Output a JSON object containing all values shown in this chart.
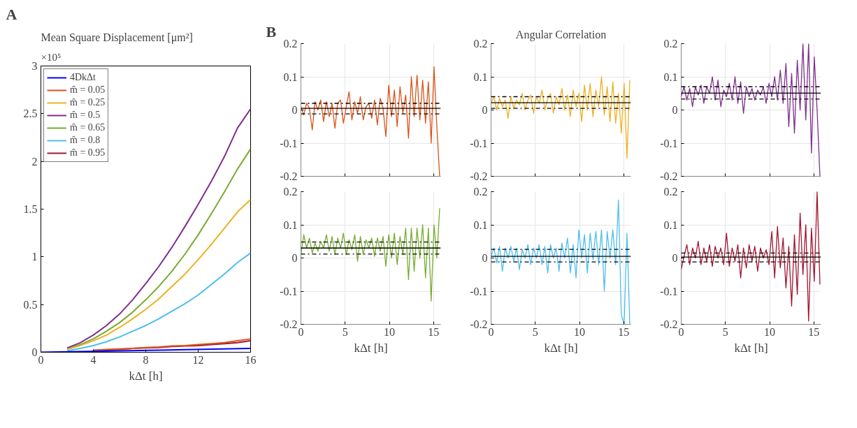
{
  "chart_data": [
    {
      "type": "line",
      "title": "Mean Square Displacement [μm²]",
      "xlabel": "kΔt [h]",
      "annotations": [
        "A",
        "×10⁵"
      ],
      "xlim": [
        0,
        16
      ],
      "xticks": [
        0,
        4,
        8,
        12,
        16
      ],
      "ylim": [
        0,
        3
      ],
      "yticks": [
        0,
        0.5,
        1,
        1.5,
        2,
        2.5,
        3
      ],
      "grid": false,
      "legend": "top left",
      "series": [
        {
          "name": "4DkΔt",
          "color": "#0000ff",
          "x": [
            0,
            16
          ],
          "values": [
            0,
            0.04
          ]
        },
        {
          "name": "m̂ = 0.05",
          "color": "#d95319",
          "x": [
            4,
            5,
            6,
            7,
            8,
            9,
            10,
            11,
            12,
            13,
            14,
            15,
            16
          ],
          "values": [
            0.02,
            0.03,
            0.035,
            0.04,
            0.05,
            0.055,
            0.065,
            0.07,
            0.08,
            0.09,
            0.1,
            0.12,
            0.14
          ]
        },
        {
          "name": "m̂ = 0.25",
          "color": "#edb120",
          "x": [
            2,
            3,
            4,
            5,
            6,
            7,
            8,
            9,
            10,
            11,
            12,
            13,
            14,
            15,
            16
          ],
          "values": [
            0.03,
            0.07,
            0.12,
            0.18,
            0.26,
            0.35,
            0.45,
            0.56,
            0.69,
            0.82,
            0.97,
            1.13,
            1.3,
            1.47,
            1.6
          ]
        },
        {
          "name": "m̂ = 0.5",
          "color": "#7e2f8e",
          "x": [
            2,
            3,
            4,
            5,
            6,
            7,
            8,
            9,
            10,
            11,
            12,
            13,
            14,
            15,
            16
          ],
          "values": [
            0.045,
            0.1,
            0.18,
            0.28,
            0.4,
            0.55,
            0.72,
            0.9,
            1.1,
            1.32,
            1.55,
            1.79,
            2.05,
            2.35,
            2.55
          ]
        },
        {
          "name": "m̂ = 0.65",
          "color": "#77ac30",
          "x": [
            2,
            3,
            4,
            5,
            6,
            7,
            8,
            9,
            10,
            11,
            12,
            13,
            14,
            15,
            16
          ],
          "values": [
            0.035,
            0.08,
            0.14,
            0.22,
            0.31,
            0.42,
            0.55,
            0.69,
            0.85,
            1.03,
            1.23,
            1.45,
            1.68,
            1.92,
            2.13
          ]
        },
        {
          "name": "m̂ = 0.8",
          "color": "#4dbeee",
          "x": [
            2,
            3,
            4,
            5,
            6,
            7,
            8,
            9,
            10,
            11,
            12,
            13,
            14,
            15,
            16
          ],
          "values": [
            0.015,
            0.04,
            0.07,
            0.11,
            0.16,
            0.22,
            0.28,
            0.35,
            0.43,
            0.51,
            0.6,
            0.71,
            0.82,
            0.94,
            1.04
          ]
        },
        {
          "name": "m̂ = 0.95",
          "color": "#a2142f",
          "x": [
            4,
            5,
            6,
            7,
            8,
            9,
            10,
            11,
            12,
            13,
            14,
            15,
            16
          ],
          "values": [
            0.02,
            0.025,
            0.03,
            0.04,
            0.045,
            0.05,
            0.06,
            0.065,
            0.07,
            0.08,
            0.09,
            0.1,
            0.12
          ]
        }
      ]
    },
    {
      "type": "line",
      "annotations": [
        "B"
      ],
      "tick_labels": "y",
      "xlim": [
        0,
        15.8
      ],
      "xticks": [
        0,
        5,
        10,
        15
      ],
      "ylim": [
        -0.2,
        0.2
      ],
      "yticks": [
        -0.2,
        -0.1,
        0,
        0.1,
        0.2
      ],
      "grid": true,
      "x": [
        0,
        0.32,
        0.64,
        0.96,
        1.28,
        1.6,
        1.92,
        2.24,
        2.56,
        2.88,
        3.2,
        3.52,
        3.84,
        4.16,
        4.48,
        4.8,
        5.12,
        5.44,
        5.76,
        6.08,
        6.4,
        6.72,
        7.04,
        7.36,
        7.68,
        8,
        8.32,
        8.64,
        8.96,
        9.28,
        9.6,
        9.92,
        10.24,
        10.56,
        10.88,
        11.2,
        11.52,
        11.84,
        12.16,
        12.48,
        12.8,
        13.12,
        13.44,
        13.76,
        14.08,
        14.4,
        14.72,
        15.04,
        15.36,
        15.68
      ],
      "series": [
        {
          "color": "#d95319",
          "values": [
            0.01,
            -0.015,
            0.02,
            0.005,
            -0.06,
            0.025,
            0.0,
            0.03,
            -0.035,
            0.025,
            -0.02,
            0.02,
            -0.055,
            0.02,
            0.03,
            -0.04,
            0.01,
            0.055,
            -0.03,
            0.025,
            -0.01,
            0.04,
            -0.03,
            0.01,
            0.02,
            -0.025,
            0.03,
            -0.045,
            0.035,
            0.005,
            -0.08,
            0.075,
            -0.02,
            0.06,
            -0.05,
            0.07,
            -0.01,
            0.045,
            -0.085,
            0.1,
            -0.02,
            0.105,
            -0.03,
            0.09,
            -0.04,
            0.085,
            -0.1,
            0.13,
            -0.05,
            -0.2
          ]
        }
      ],
      "ref_lines": [
        {
          "axis": "y",
          "value": 0.005,
          "line_style": "solid"
        },
        {
          "axis": "y",
          "value": 0.02,
          "line_style": "dashdot"
        },
        {
          "axis": "y",
          "value": -0.012,
          "line_style": "dashdot"
        }
      ]
    },
    {
      "type": "line",
      "title": "Angular Correlation",
      "tick_labels": "y",
      "xlim": [
        0,
        15.8
      ],
      "xticks": [
        0,
        5,
        10,
        15
      ],
      "ylim": [
        -0.2,
        0.2
      ],
      "yticks": [
        -0.2,
        -0.1,
        0,
        0.1,
        0.2
      ],
      "grid": true,
      "x": [
        0,
        0.32,
        0.64,
        0.96,
        1.28,
        1.6,
        1.92,
        2.24,
        2.56,
        2.88,
        3.2,
        3.52,
        3.84,
        4.16,
        4.48,
        4.8,
        5.12,
        5.44,
        5.76,
        6.08,
        6.4,
        6.72,
        7.04,
        7.36,
        7.68,
        8,
        8.32,
        8.64,
        8.96,
        9.28,
        9.6,
        9.92,
        10.24,
        10.56,
        10.88,
        11.2,
        11.52,
        11.84,
        12.16,
        12.48,
        12.8,
        13.12,
        13.44,
        13.76,
        14.08,
        14.4,
        14.72,
        15.04,
        15.36,
        15.68
      ],
      "series": [
        {
          "color": "#edb120",
          "values": [
            0.02,
            0.04,
            0.0,
            0.035,
            0.01,
            0.03,
            -0.025,
            0.04,
            0.005,
            0.03,
            0.015,
            0.05,
            0.0,
            0.03,
            0.045,
            -0.01,
            0.04,
            0.02,
            0.06,
            0.0,
            0.035,
            0.05,
            -0.01,
            0.04,
            0.015,
            0.065,
            0.0,
            0.045,
            -0.02,
            0.06,
            0.01,
            0.05,
            -0.035,
            0.075,
            0.0,
            0.08,
            -0.02,
            0.06,
            0.01,
            0.1,
            -0.015,
            0.07,
            -0.035,
            0.085,
            -0.04,
            0.05,
            -0.07,
            0.08,
            -0.145,
            0.09
          ]
        }
      ],
      "ref_lines": [
        {
          "axis": "y",
          "value": 0.022,
          "line_style": "solid"
        },
        {
          "axis": "y",
          "value": 0.04,
          "line_style": "dashdot"
        },
        {
          "axis": "y",
          "value": 0.005,
          "line_style": "dashdot"
        }
      ]
    },
    {
      "type": "line",
      "tick_labels": "y",
      "xlim": [
        0,
        15.8
      ],
      "xticks": [
        0,
        5,
        10,
        15
      ],
      "ylim": [
        -0.2,
        0.2
      ],
      "yticks": [
        -0.2,
        -0.1,
        0,
        0.1,
        0.2
      ],
      "grid": true,
      "x": [
        0,
        0.32,
        0.64,
        0.96,
        1.28,
        1.6,
        1.92,
        2.24,
        2.56,
        2.88,
        3.2,
        3.52,
        3.84,
        4.16,
        4.48,
        4.8,
        5.12,
        5.44,
        5.76,
        6.08,
        6.4,
        6.72,
        7.04,
        7.36,
        7.68,
        8,
        8.32,
        8.64,
        8.96,
        9.28,
        9.6,
        9.92,
        10.24,
        10.56,
        10.88,
        11.2,
        11.52,
        11.84,
        12.16,
        12.48,
        12.8,
        13.12,
        13.44,
        13.76,
        14.08,
        14.4,
        14.72,
        15.04,
        15.36,
        15.68
      ],
      "series": [
        {
          "color": "#7e2f8e",
          "values": [
            0.04,
            0.07,
            0.03,
            0.065,
            0.01,
            0.07,
            0.045,
            0.075,
            0.02,
            0.07,
            0.05,
            0.1,
            0.03,
            0.09,
            0.01,
            0.06,
            0.04,
            0.08,
            0.03,
            0.1,
            0.02,
            0.085,
            -0.01,
            0.07,
            0.04,
            0.065,
            0.03,
            0.06,
            0.045,
            0.07,
            0.02,
            0.08,
            0.04,
            0.1,
            0.03,
            0.12,
            0.02,
            0.14,
            -0.05,
            0.11,
            -0.07,
            0.15,
            0.0,
            0.2,
            -0.03,
            0.2,
            -0.13,
            0.16,
            0.0,
            -0.2
          ]
        }
      ],
      "ref_lines": [
        {
          "axis": "y",
          "value": 0.051,
          "line_style": "solid"
        },
        {
          "axis": "y",
          "value": 0.07,
          "line_style": "dashdot"
        },
        {
          "axis": "y",
          "value": 0.033,
          "line_style": "dashdot"
        }
      ]
    },
    {
      "type": "line",
      "xlabel": "kΔt [h]",
      "xlim": [
        0,
        15.8
      ],
      "xticks": [
        0,
        5,
        10,
        15
      ],
      "ylim": [
        -0.2,
        0.2
      ],
      "yticks": [
        -0.2,
        -0.1,
        0,
        0.1,
        0.2
      ],
      "grid": true,
      "x": [
        0,
        0.32,
        0.64,
        0.96,
        1.28,
        1.6,
        1.92,
        2.24,
        2.56,
        2.88,
        3.2,
        3.52,
        3.84,
        4.16,
        4.48,
        4.8,
        5.12,
        5.44,
        5.76,
        6.08,
        6.4,
        6.72,
        7.04,
        7.36,
        7.68,
        8,
        8.32,
        8.64,
        8.96,
        9.28,
        9.6,
        9.92,
        10.24,
        10.56,
        10.88,
        11.2,
        11.52,
        11.84,
        12.16,
        12.48,
        12.8,
        13.12,
        13.44,
        13.76,
        14.08,
        14.4,
        14.72,
        15.04,
        15.36,
        15.68
      ],
      "series": [
        {
          "color": "#77ac30",
          "values": [
            0.01,
            0.07,
            0.03,
            0.06,
            0.015,
            0.045,
            0.02,
            0.05,
            0.03,
            0.07,
            0.02,
            0.065,
            0.01,
            0.06,
            0.03,
            0.075,
            0.01,
            0.055,
            0.025,
            0.07,
            -0.01,
            0.065,
            0.01,
            0.055,
            0.03,
            0.06,
            0.005,
            0.06,
            0.02,
            0.065,
            -0.025,
            0.07,
            0.0,
            0.075,
            -0.02,
            0.065,
            0.01,
            0.09,
            -0.065,
            0.09,
            -0.04,
            0.09,
            0.0,
            0.1,
            -0.06,
            0.09,
            -0.13,
            0.1,
            0.0,
            0.15
          ]
        }
      ],
      "ref_lines": [
        {
          "axis": "y",
          "value": 0.03,
          "line_style": "solid"
        },
        {
          "axis": "y",
          "value": 0.048,
          "line_style": "dashdot"
        },
        {
          "axis": "y",
          "value": 0.012,
          "line_style": "dashdot"
        }
      ]
    },
    {
      "type": "line",
      "xlabel": "kΔt [h]",
      "xlim": [
        0,
        15.8
      ],
      "xticks": [
        0,
        5,
        10,
        15
      ],
      "ylim": [
        -0.2,
        0.2
      ],
      "yticks": [
        -0.2,
        -0.1,
        0,
        0.1,
        0.2
      ],
      "grid": true,
      "x": [
        0,
        0.32,
        0.64,
        0.96,
        1.28,
        1.6,
        1.92,
        2.24,
        2.56,
        2.88,
        3.2,
        3.52,
        3.84,
        4.16,
        4.48,
        4.8,
        5.12,
        5.44,
        5.76,
        6.08,
        6.4,
        6.72,
        7.04,
        7.36,
        7.68,
        8,
        8.32,
        8.64,
        8.96,
        9.28,
        9.6,
        9.92,
        10.24,
        10.56,
        10.88,
        11.2,
        11.52,
        11.84,
        12.16,
        12.48,
        12.8,
        13.12,
        13.44,
        13.76,
        14.08,
        14.4,
        14.72,
        15.04,
        15.36,
        15.68
      ],
      "series": [
        {
          "color": "#4dbeee",
          "values": [
            0.005,
            0.03,
            -0.015,
            0.035,
            -0.04,
            0.03,
            0.0,
            0.035,
            -0.01,
            0.03,
            -0.035,
            0.025,
            0.0,
            0.04,
            -0.02,
            0.03,
            0.0,
            0.04,
            -0.02,
            0.035,
            -0.045,
            0.04,
            0.0,
            0.03,
            -0.04,
            0.045,
            0.0,
            0.06,
            -0.045,
            0.04,
            -0.06,
            0.085,
            0.0,
            0.07,
            -0.045,
            0.075,
            -0.005,
            0.08,
            -0.02,
            0.085,
            -0.1,
            0.08,
            0.0,
            0.085,
            -0.02,
            0.175,
            -0.17,
            -0.2,
            0.075,
            -0.2
          ]
        }
      ],
      "ref_lines": [
        {
          "axis": "y",
          "value": 0.005,
          "line_style": "solid"
        },
        {
          "axis": "y",
          "value": 0.026,
          "line_style": "dashdot"
        },
        {
          "axis": "y",
          "value": -0.012,
          "line_style": "dashdot"
        }
      ]
    },
    {
      "type": "line",
      "xlabel": "kΔt [h]",
      "xlim": [
        0,
        15.8
      ],
      "xticks": [
        0,
        5,
        10,
        15
      ],
      "ylim": [
        -0.2,
        0.2
      ],
      "yticks": [
        -0.2,
        -0.1,
        0,
        0.1,
        0.2
      ],
      "grid": true,
      "x": [
        0,
        0.32,
        0.64,
        0.96,
        1.28,
        1.6,
        1.92,
        2.24,
        2.56,
        2.88,
        3.2,
        3.52,
        3.84,
        4.16,
        4.48,
        4.8,
        5.12,
        5.44,
        5.76,
        6.08,
        6.4,
        6.72,
        7.04,
        7.36,
        7.68,
        8,
        8.32,
        8.64,
        8.96,
        9.28,
        9.6,
        9.92,
        10.24,
        10.56,
        10.88,
        11.2,
        11.52,
        11.84,
        12.16,
        12.48,
        12.8,
        13.12,
        13.44,
        13.76,
        14.08,
        14.4,
        14.72,
        15.04,
        15.36,
        15.68
      ],
      "series": [
        {
          "color": "#a2142f",
          "values": [
            -0.035,
            0.005,
            0.04,
            -0.02,
            0.03,
            0.0,
            0.05,
            -0.02,
            0.03,
            -0.01,
            0.04,
            -0.025,
            0.035,
            0.0,
            0.03,
            -0.02,
            0.075,
            -0.025,
            0.03,
            -0.01,
            0.04,
            -0.06,
            0.03,
            -0.03,
            0.04,
            -0.01,
            0.035,
            -0.04,
            0.03,
            0.0,
            0.025,
            -0.02,
            0.08,
            -0.06,
            0.095,
            -0.03,
            0.06,
            -0.09,
            0.035,
            -0.145,
            0.07,
            -0.11,
            0.135,
            -0.05,
            0.1,
            -0.19,
            0.09,
            -0.07,
            0.2,
            -0.08
          ]
        }
      ],
      "ref_lines": [
        {
          "axis": "y",
          "value": 0.003,
          "line_style": "solid"
        },
        {
          "axis": "y",
          "value": 0.015,
          "line_style": "dashdot"
        },
        {
          "axis": "y",
          "value": -0.012,
          "line_style": "dashdot"
        }
      ]
    }
  ]
}
